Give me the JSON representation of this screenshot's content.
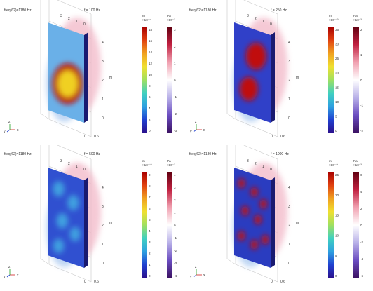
{
  "panels": [
    {
      "freq_label": "freq(62)=1180 Hz",
      "title": "f = 100 Hz",
      "axis_x_ticks": [
        "0",
        "0.6"
      ],
      "axis_y_ticks": [
        "0",
        "1",
        "2",
        "3",
        "4"
      ],
      "axis_unit": "m",
      "depth_ticks": [
        "3",
        "2",
        "1",
        "0"
      ],
      "cb1": {
        "unit": "m",
        "exp": "×10⁻⁹",
        "ticks": [
          "18",
          "16",
          "14",
          "12",
          "10",
          "8",
          "6",
          "4",
          "2",
          "0"
        ]
      },
      "cb2": {
        "unit": "Pa",
        "exp": "×10⁻³",
        "ticks": [
          "3",
          "2",
          "1",
          "0",
          "-1",
          "-2",
          "-3"
        ]
      }
    },
    {
      "freq_label": "freq(62)=1180 Hz",
      "title": "f = 250 Hz",
      "axis_x_ticks": [
        "0",
        "0.6"
      ],
      "axis_y_ticks": [
        "0",
        "1",
        "2",
        "3",
        "4"
      ],
      "axis_unit": "m",
      "depth_ticks": [
        "3",
        "2",
        "1",
        "0"
      ],
      "cb1": {
        "unit": "m",
        "exp": "×10⁻¹⁰",
        "ticks": [
          "35",
          "30",
          "25",
          "20",
          "15",
          "10",
          "5",
          "0"
        ]
      },
      "cb2": {
        "unit": "Pa",
        "exp": "×10⁻³",
        "ticks": [
          "2",
          "1",
          "0",
          "-1",
          "-2"
        ]
      }
    },
    {
      "freq_label": "freq(62)=1180 Hz",
      "title": "f = 500 Hz",
      "axis_x_ticks": [
        "0",
        "0.6"
      ],
      "axis_y_ticks": [
        "0",
        "1",
        "2",
        "3",
        "4"
      ],
      "axis_unit": "m",
      "depth_ticks": [
        "3",
        "2",
        "1",
        "0"
      ],
      "cb1": {
        "unit": "m",
        "exp": "×10⁻¹⁰",
        "ticks": [
          "9",
          "8",
          "7",
          "6",
          "5",
          "4",
          "3",
          "2",
          "1",
          "0"
        ]
      },
      "cb2": {
        "unit": "Pa",
        "exp": "×10⁻³",
        "ticks": [
          "4",
          "3",
          "2",
          "1",
          "0",
          "-1",
          "-2",
          "-3",
          "-4"
        ]
      }
    },
    {
      "freq_label": "freq(62)=1180 Hz",
      "title": "f = 1000 Hz",
      "axis_x_ticks": [
        "0",
        "0.6"
      ],
      "axis_y_ticks": [
        "0",
        "1",
        "2",
        "3",
        "4"
      ],
      "axis_unit": "m",
      "depth_ticks": [
        "3",
        "2",
        "1",
        "0"
      ],
      "cb1": {
        "unit": "m",
        "exp": "×10⁻¹¹",
        "ticks": [
          "25",
          "20",
          "15",
          "10",
          "5",
          "0"
        ]
      },
      "cb2": {
        "unit": "Pa",
        "exp": "×10⁻³",
        "ticks": [
          "6",
          "4",
          "2",
          "0",
          "-2",
          "-4",
          "-6"
        ]
      }
    }
  ],
  "triad": {
    "x": "x",
    "y": "y",
    "z": "z"
  },
  "colors": {
    "rainbow": [
      "#2b0f8a",
      "#2040d0",
      "#2ea0e0",
      "#40d0c0",
      "#a0e060",
      "#f0e030",
      "#f0a020",
      "#e04010",
      "#a80000"
    ],
    "diverging": [
      "#3a1060",
      "#6a4cc0",
      "#b8b0e8",
      "#ffffff",
      "#f0a0b0",
      "#c02040",
      "#600010"
    ]
  }
}
